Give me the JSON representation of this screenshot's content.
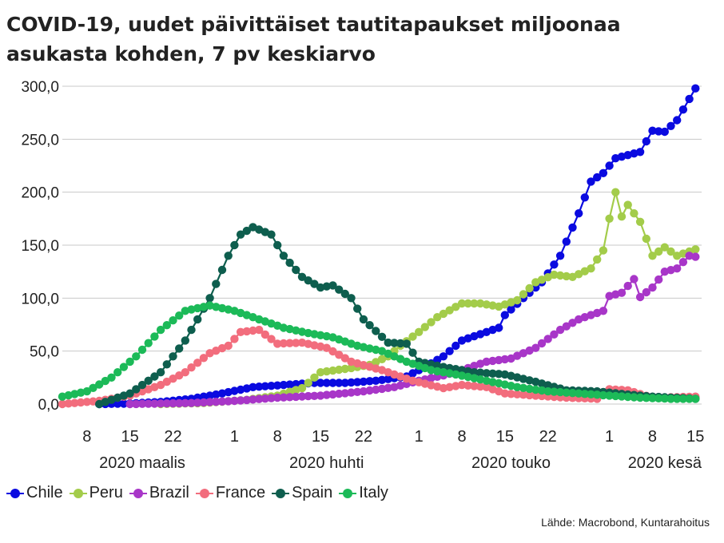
{
  "chart_data": {
    "type": "line",
    "title": "COVID-19, uudet päivittäiset tautitapaukset miljoonaa asukasta kohden, 7 pv keskiarvo",
    "source": "Lähde: Macrobond, Kuntarahoitus",
    "ylim": [
      0,
      300
    ],
    "yticks": [
      "0,0",
      "50,0",
      "100,0",
      "150,0",
      "200,0",
      "250,0",
      "300,0"
    ],
    "ytick_values": [
      0,
      50,
      100,
      150,
      200,
      250,
      300
    ],
    "xlim": [
      "2020-03-04",
      "2020-06-16"
    ],
    "xticks": [
      {
        "date": "2020-03-08",
        "label": "8"
      },
      {
        "date": "2020-03-15",
        "label": "15"
      },
      {
        "date": "2020-03-22",
        "label": "22"
      },
      {
        "date": "2020-04-01",
        "label": "1"
      },
      {
        "date": "2020-04-08",
        "label": "8"
      },
      {
        "date": "2020-04-15",
        "label": "15"
      },
      {
        "date": "2020-04-22",
        "label": "22"
      },
      {
        "date": "2020-05-01",
        "label": "1"
      },
      {
        "date": "2020-05-08",
        "label": "8"
      },
      {
        "date": "2020-05-15",
        "label": "15"
      },
      {
        "date": "2020-05-22",
        "label": "22"
      },
      {
        "date": "2020-06-01",
        "label": "1"
      },
      {
        "date": "2020-06-08",
        "label": "8"
      },
      {
        "date": "2020-06-15",
        "label": "15"
      }
    ],
    "month_labels": [
      {
        "label": "2020 maalis",
        "center": "2020-03-17"
      },
      {
        "label": "2020 huhti",
        "center": "2020-04-16"
      },
      {
        "label": "2020 touko",
        "center": "2020-05-16"
      },
      {
        "label": "2020 kesä",
        "center": "2020-06-10"
      }
    ],
    "grid": true,
    "legend_position": "bottom-left",
    "series": [
      {
        "name": "Chile",
        "color": "#0a0ae0",
        "points": [
          [
            "2020-03-10",
            0
          ],
          [
            "2020-03-15",
            0.5
          ],
          [
            "2020-03-20",
            2
          ],
          [
            "2020-03-25",
            5
          ],
          [
            "2020-03-30",
            10
          ],
          [
            "2020-04-04",
            16
          ],
          [
            "2020-04-09",
            18
          ],
          [
            "2020-04-14",
            20
          ],
          [
            "2020-04-19",
            20
          ],
          [
            "2020-04-24",
            22
          ],
          [
            "2020-04-29",
            26
          ],
          [
            "2020-05-02",
            35
          ],
          [
            "2020-05-05",
            45
          ],
          [
            "2020-05-08",
            60
          ],
          [
            "2020-05-11",
            66
          ],
          [
            "2020-05-14",
            72
          ],
          [
            "2020-05-15",
            84
          ],
          [
            "2020-05-18",
            100
          ],
          [
            "2020-05-21",
            115
          ],
          [
            "2020-05-24",
            140
          ],
          [
            "2020-05-27",
            180
          ],
          [
            "2020-05-29",
            210
          ],
          [
            "2020-05-31",
            218
          ],
          [
            "2020-06-02",
            232
          ],
          [
            "2020-06-04",
            235
          ],
          [
            "2020-06-06",
            238
          ],
          [
            "2020-06-08",
            258
          ],
          [
            "2020-06-10",
            257
          ],
          [
            "2020-06-12",
            268
          ],
          [
            "2020-06-14",
            288
          ],
          [
            "2020-06-15",
            298
          ]
        ]
      },
      {
        "name": "Peru",
        "color": "#a3cc4a",
        "points": [
          [
            "2020-03-20",
            0
          ],
          [
            "2020-03-27",
            1
          ],
          [
            "2020-04-03",
            4
          ],
          [
            "2020-04-08",
            8
          ],
          [
            "2020-04-12",
            15
          ],
          [
            "2020-04-15",
            30
          ],
          [
            "2020-04-20",
            34
          ],
          [
            "2020-04-23",
            37
          ],
          [
            "2020-04-26",
            45
          ],
          [
            "2020-04-28",
            55
          ],
          [
            "2020-05-01",
            68
          ],
          [
            "2020-05-04",
            82
          ],
          [
            "2020-05-08",
            95
          ],
          [
            "2020-05-11",
            95
          ],
          [
            "2020-05-14",
            92
          ],
          [
            "2020-05-17",
            98
          ],
          [
            "2020-05-20",
            115
          ],
          [
            "2020-05-23",
            122
          ],
          [
            "2020-05-26",
            120
          ],
          [
            "2020-05-29",
            128
          ],
          [
            "2020-05-31",
            145
          ],
          [
            "2020-06-01",
            175
          ],
          [
            "2020-06-02",
            200
          ],
          [
            "2020-06-03",
            177
          ],
          [
            "2020-06-04",
            188
          ],
          [
            "2020-06-06",
            172
          ],
          [
            "2020-06-08",
            140
          ],
          [
            "2020-06-10",
            148
          ],
          [
            "2020-06-12",
            140
          ],
          [
            "2020-06-15",
            146
          ]
        ]
      },
      {
        "name": "Brazil",
        "color": "#a836c8",
        "points": [
          [
            "2020-03-15",
            0
          ],
          [
            "2020-03-25",
            1
          ],
          [
            "2020-04-01",
            3
          ],
          [
            "2020-04-08",
            6
          ],
          [
            "2020-04-15",
            8
          ],
          [
            "2020-04-22",
            12
          ],
          [
            "2020-04-27",
            16
          ],
          [
            "2020-05-01",
            22
          ],
          [
            "2020-05-05",
            27
          ],
          [
            "2020-05-08",
            32
          ],
          [
            "2020-05-12",
            40
          ],
          [
            "2020-05-16",
            43
          ],
          [
            "2020-05-20",
            53
          ],
          [
            "2020-05-24",
            70
          ],
          [
            "2020-05-27",
            80
          ],
          [
            "2020-05-31",
            88
          ],
          [
            "2020-06-01",
            102
          ],
          [
            "2020-06-03",
            105
          ],
          [
            "2020-06-05",
            118
          ],
          [
            "2020-06-06",
            101
          ],
          [
            "2020-06-08",
            110
          ],
          [
            "2020-06-10",
            125
          ],
          [
            "2020-06-12",
            128
          ],
          [
            "2020-06-14",
            140
          ],
          [
            "2020-06-15",
            139
          ]
        ]
      },
      {
        "name": "France",
        "color": "#f26d7d",
        "points": [
          [
            "2020-03-04",
            0
          ],
          [
            "2020-03-10",
            3
          ],
          [
            "2020-03-15",
            8
          ],
          [
            "2020-03-20",
            18
          ],
          [
            "2020-03-24",
            30
          ],
          [
            "2020-03-28",
            48
          ],
          [
            "2020-03-31",
            55
          ],
          [
            "2020-04-02",
            68
          ],
          [
            "2020-04-05",
            70
          ],
          [
            "2020-04-08",
            57
          ],
          [
            "2020-04-12",
            58
          ],
          [
            "2020-04-16",
            53
          ],
          [
            "2020-04-20",
            40
          ],
          [
            "2020-04-25",
            32
          ],
          [
            "2020-04-30",
            22
          ],
          [
            "2020-05-05",
            15
          ],
          [
            "2020-05-08",
            18
          ],
          [
            "2020-05-12",
            16
          ],
          [
            "2020-05-15",
            10
          ],
          [
            "2020-05-20",
            8
          ],
          [
            "2020-05-25",
            6
          ],
          [
            "2020-05-30",
            5
          ],
          [
            "2020-06-01",
            14
          ],
          [
            "2020-06-04",
            13
          ],
          [
            "2020-06-08",
            6
          ],
          [
            "2020-06-15",
            7
          ]
        ]
      },
      {
        "name": "Spain",
        "color": "#0e5e4e",
        "points": [
          [
            "2020-03-10",
            0
          ],
          [
            "2020-03-15",
            10
          ],
          [
            "2020-03-20",
            30
          ],
          [
            "2020-03-24",
            60
          ],
          [
            "2020-03-28",
            100
          ],
          [
            "2020-03-31",
            140
          ],
          [
            "2020-04-02",
            160
          ],
          [
            "2020-04-04",
            167
          ],
          [
            "2020-04-07",
            160
          ],
          [
            "2020-04-09",
            140
          ],
          [
            "2020-04-12",
            120
          ],
          [
            "2020-04-15",
            110
          ],
          [
            "2020-04-17",
            112
          ],
          [
            "2020-04-20",
            100
          ],
          [
            "2020-04-22",
            80
          ],
          [
            "2020-04-26",
            58
          ],
          [
            "2020-04-29",
            57
          ],
          [
            "2020-05-01",
            40
          ],
          [
            "2020-05-05",
            35
          ],
          [
            "2020-05-10",
            30
          ],
          [
            "2020-05-15",
            28
          ],
          [
            "2020-05-20",
            21
          ],
          [
            "2020-05-25",
            13
          ],
          [
            "2020-05-30",
            12
          ],
          [
            "2020-06-04",
            9
          ],
          [
            "2020-06-08",
            7
          ],
          [
            "2020-06-15",
            5
          ]
        ]
      },
      {
        "name": "Italy",
        "color": "#1cba58",
        "points": [
          [
            "2020-03-04",
            7
          ],
          [
            "2020-03-08",
            12
          ],
          [
            "2020-03-12",
            25
          ],
          [
            "2020-03-16",
            45
          ],
          [
            "2020-03-20",
            70
          ],
          [
            "2020-03-24",
            88
          ],
          [
            "2020-03-28",
            93
          ],
          [
            "2020-04-01",
            88
          ],
          [
            "2020-04-05",
            80
          ],
          [
            "2020-04-09",
            72
          ],
          [
            "2020-04-13",
            67
          ],
          [
            "2020-04-17",
            63
          ],
          [
            "2020-04-21",
            55
          ],
          [
            "2020-04-25",
            50
          ],
          [
            "2020-04-29",
            40
          ],
          [
            "2020-05-03",
            32
          ],
          [
            "2020-05-07",
            28
          ],
          [
            "2020-05-12",
            22
          ],
          [
            "2020-05-17",
            16
          ],
          [
            "2020-05-22",
            12
          ],
          [
            "2020-05-27",
            10
          ],
          [
            "2020-06-01",
            8
          ],
          [
            "2020-06-06",
            6
          ],
          [
            "2020-06-11",
            5
          ],
          [
            "2020-06-15",
            5
          ]
        ]
      }
    ]
  }
}
